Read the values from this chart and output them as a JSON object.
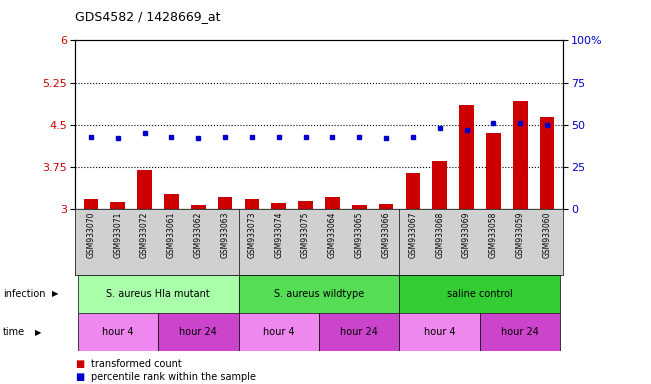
{
  "title": "GDS4582 / 1428669_at",
  "samples": [
    "GSM933070",
    "GSM933071",
    "GSM933072",
    "GSM933061",
    "GSM933062",
    "GSM933063",
    "GSM933073",
    "GSM933074",
    "GSM933075",
    "GSM933064",
    "GSM933065",
    "GSM933066",
    "GSM933067",
    "GSM933068",
    "GSM933069",
    "GSM933058",
    "GSM933059",
    "GSM933060"
  ],
  "bar_values": [
    3.18,
    3.13,
    3.7,
    3.28,
    3.08,
    3.22,
    3.18,
    3.12,
    3.15,
    3.22,
    3.08,
    3.1,
    3.65,
    3.85,
    4.85,
    4.35,
    4.93,
    4.63
  ],
  "dot_values": [
    43,
    42,
    45,
    43,
    42,
    43,
    43,
    43,
    43,
    43,
    43,
    42,
    43,
    48,
    47,
    51,
    51,
    50
  ],
  "ylim_left": [
    3.0,
    6.0
  ],
  "ylim_right": [
    0,
    100
  ],
  "yticks_left": [
    3.0,
    3.75,
    4.5,
    5.25,
    6.0
  ],
  "yticks_right": [
    0,
    25,
    50,
    75,
    100
  ],
  "hlines": [
    3.75,
    4.5,
    5.25
  ],
  "bar_color": "#cc0000",
  "dot_color": "#0000cc",
  "infection_groups": [
    {
      "label": "S. aureus Hla mutant",
      "start": 0,
      "end": 5,
      "color": "#aaffaa"
    },
    {
      "label": "S. aureus wildtype",
      "start": 6,
      "end": 11,
      "color": "#55dd55"
    },
    {
      "label": "saline control",
      "start": 12,
      "end": 17,
      "color": "#33cc33"
    }
  ],
  "time_groups": [
    {
      "label": "hour 4",
      "start": 0,
      "end": 2,
      "color": "#ee88ee"
    },
    {
      "label": "hour 24",
      "start": 3,
      "end": 5,
      "color": "#cc44cc"
    },
    {
      "label": "hour 4",
      "start": 6,
      "end": 8,
      "color": "#ee88ee"
    },
    {
      "label": "hour 24",
      "start": 9,
      "end": 11,
      "color": "#cc44cc"
    },
    {
      "label": "hour 4",
      "start": 12,
      "end": 14,
      "color": "#ee88ee"
    },
    {
      "label": "hour 24",
      "start": 15,
      "end": 17,
      "color": "#cc44cc"
    }
  ],
  "legend_items": [
    {
      "label": "transformed count",
      "color": "#cc0000"
    },
    {
      "label": "percentile rank within the sample",
      "color": "#0000cc"
    }
  ],
  "infection_label": "infection",
  "time_label": "time",
  "sample_bg_color": "#d0d0d0",
  "plot_bg_color": "#ffffff"
}
